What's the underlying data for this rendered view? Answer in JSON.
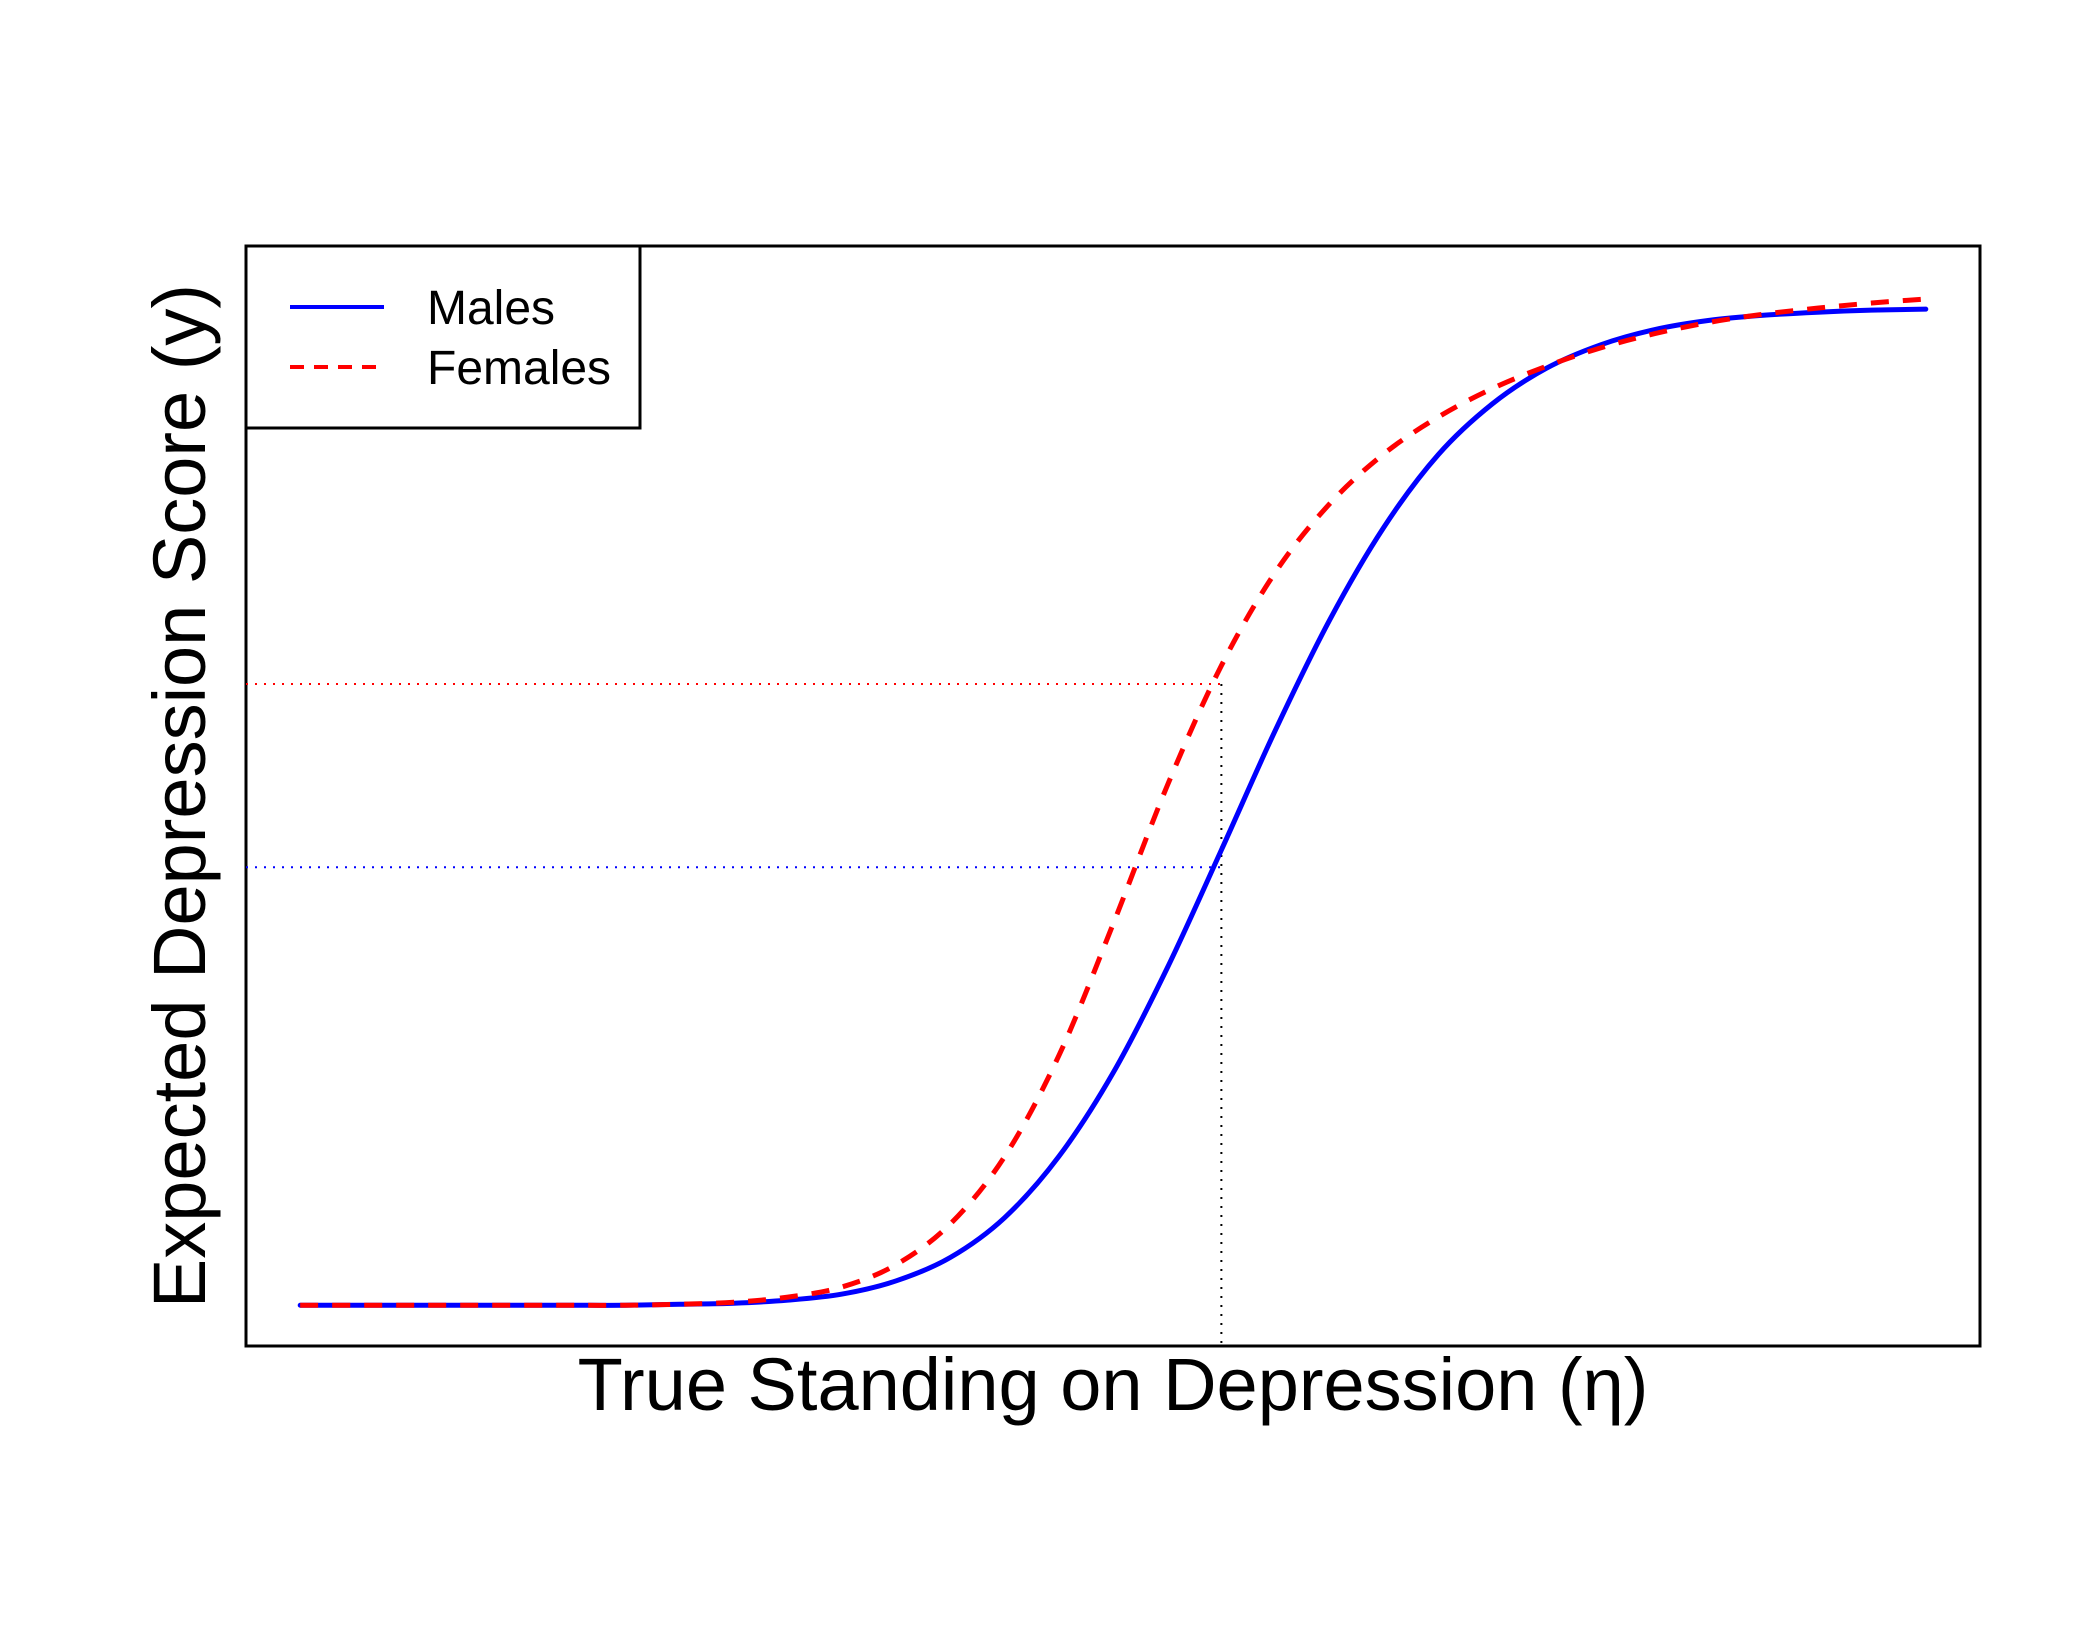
{
  "chart_data": {
    "type": "line",
    "title": "",
    "xlabel": "True Standing on Depression (η)",
    "ylabel": "Expected Depression Score (y)",
    "xlim": [
      -4,
      4
    ],
    "ylim": [
      -0.04,
      1.04
    ],
    "axis_ticks_shown": false,
    "grid": false,
    "legend": {
      "placement": "top-left",
      "entries": [
        "Males",
        "Females"
      ]
    },
    "series": [
      {
        "name": "Males",
        "color": "#0000ff",
        "linestyle": "solid",
        "x": [
          -3.75,
          -3.5,
          -3.25,
          -3.0,
          -2.75,
          -2.5,
          -2.25,
          -2.0,
          -1.75,
          -1.5,
          -1.25,
          -1.0,
          -0.75,
          -0.5,
          -0.25,
          0.0,
          0.25,
          0.5,
          0.75,
          1.0,
          1.25,
          1.5,
          1.75,
          2.0,
          2.25,
          2.5,
          2.75,
          3.0,
          3.25,
          3.5,
          3.75
        ],
        "y": [
          0.0,
          0.0,
          0.0,
          0.0,
          0.0,
          0.0,
          0.0,
          0.001,
          0.002,
          0.005,
          0.011,
          0.024,
          0.047,
          0.086,
          0.146,
          0.228,
          0.331,
          0.447,
          0.565,
          0.673,
          0.764,
          0.835,
          0.885,
          0.92,
          0.943,
          0.958,
          0.967,
          0.972,
          0.975,
          0.977,
          0.978
        ]
      },
      {
        "name": "Females",
        "color": "#ff0000",
        "linestyle": "dashed",
        "x": [
          -3.75,
          -3.5,
          -3.25,
          -3.0,
          -2.75,
          -2.5,
          -2.25,
          -2.0,
          -1.75,
          -1.5,
          -1.25,
          -1.0,
          -0.75,
          -0.5,
          -0.25,
          0.0,
          0.25,
          0.5,
          0.75,
          1.0,
          1.25,
          1.5,
          1.75,
          2.0,
          2.25,
          2.5,
          2.75,
          3.0,
          3.25,
          3.5,
          3.75
        ],
        "y": [
          0.0,
          0.0,
          0.0,
          0.0,
          0.0,
          0.0,
          0.0,
          0.001,
          0.003,
          0.008,
          0.018,
          0.04,
          0.08,
          0.146,
          0.245,
          0.374,
          0.51,
          0.628,
          0.72,
          0.787,
          0.836,
          0.872,
          0.9,
          0.922,
          0.94,
          0.954,
          0.965,
          0.973,
          0.979,
          0.984,
          0.988
        ]
      }
    ],
    "reference_lines": {
      "vertical": {
        "x": 0.5,
        "color": "#000000"
      },
      "horizontal": [
        {
          "series": "Females",
          "y": 0.61,
          "color": "#ff0000"
        },
        {
          "series": "Males",
          "y": 0.43,
          "color": "#0000ff"
        }
      ]
    }
  }
}
